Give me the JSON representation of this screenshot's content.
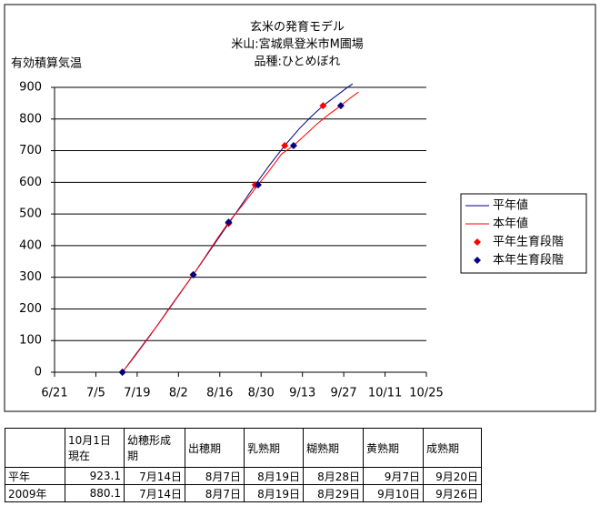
{
  "chart_data": {
    "type": "line",
    "title": [
      "玄米の発育モデル",
      "米山:宮城県登米市M圃場",
      "品種:ひとめぼれ"
    ],
    "y_label": "有効積算気温",
    "xlim": [
      172,
      298
    ],
    "xticks": [
      {
        "value": 172,
        "label": "6/21"
      },
      {
        "value": 186,
        "label": "7/5"
      },
      {
        "value": 200,
        "label": "7/19"
      },
      {
        "value": 214,
        "label": "8/2"
      },
      {
        "value": 228,
        "label": "8/16"
      },
      {
        "value": 242,
        "label": "8/30"
      },
      {
        "value": 256,
        "label": "9/13"
      },
      {
        "value": 270,
        "label": "9/27"
      },
      {
        "value": 284,
        "label": "10/11"
      },
      {
        "value": 298,
        "label": "10/25"
      }
    ],
    "ylim": [
      0,
      900
    ],
    "yticks": [
      0,
      100,
      200,
      300,
      400,
      500,
      600,
      700,
      800,
      900
    ],
    "grid": true,
    "legend": "right",
    "series": [
      {
        "name": "平年値",
        "type": "line",
        "color": "#000080",
        "x": [
          195,
          199,
          203,
          207,
          211,
          215,
          219,
          223,
          227,
          231,
          235,
          240,
          245,
          250,
          255,
          259,
          263,
          267,
          271,
          273
        ],
        "values": [
          0,
          50,
          100,
          150,
          204,
          256,
          308,
          362,
          416,
          470,
          524,
          592,
          656,
          716,
          770,
          808,
          842,
          870,
          898,
          911
        ]
      },
      {
        "name": "本年値",
        "type": "line",
        "color": "#ff0000",
        "x": [
          195,
          199,
          203,
          207,
          211,
          215,
          219,
          223,
          227,
          231,
          235,
          238,
          241,
          245,
          249,
          253,
          257,
          261,
          265,
          269,
          272,
          275
        ],
        "values": [
          0,
          48,
          98,
          150,
          202,
          255,
          308,
          364,
          420,
          474,
          520,
          556,
          592,
          640,
          690,
          716,
          750,
          785,
          815,
          842,
          865,
          885
        ]
      },
      {
        "name": "平年生育段階",
        "type": "scatter",
        "color": "#ff0000",
        "x": [
          195,
          219,
          231,
          240,
          250,
          263
        ],
        "values": [
          0,
          308,
          470,
          592,
          716,
          842
        ]
      },
      {
        "name": "本年生育段階",
        "type": "scatter",
        "color": "#000080",
        "x": [
          195,
          219,
          231,
          241,
          253,
          269
        ],
        "values": [
          0,
          308,
          474,
          592,
          716,
          842
        ]
      }
    ]
  },
  "table": {
    "header": [
      [
        "10月1日",
        "現在"
      ],
      [
        "幼穂形成",
        "期"
      ],
      [
        "出穂期"
      ],
      [
        "乳熟期"
      ],
      [
        "糊熟期"
      ],
      [
        "黄熟期"
      ],
      [
        "成熟期"
      ]
    ],
    "rows": [
      [
        "平年",
        "923.1",
        "7月14日",
        "8月7日",
        "8月19日",
        "8月28日",
        "9月7日",
        "9月20日"
      ],
      [
        "2009年",
        "880.1",
        "7月14日",
        "8月7日",
        "8月19日",
        "8月29日",
        "9月10日",
        "9月26日"
      ]
    ]
  }
}
